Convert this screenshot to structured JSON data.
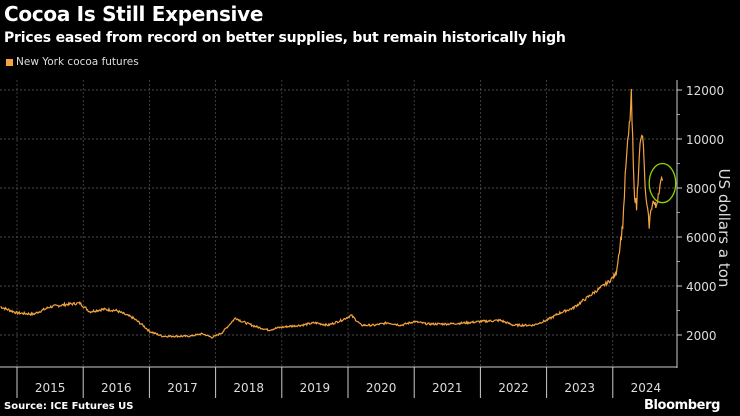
{
  "chart_data": {
    "type": "line",
    "title": "Cocoa Is Still Expensive",
    "subtitle": "Prices eased from record on better supplies, but remain historically high",
    "ylabel": "US dollars a ton",
    "source": "Source: ICE Futures US",
    "brand": "Bloomberg",
    "ylim": [
      1500,
      12500
    ],
    "yticks": [
      2000,
      4000,
      6000,
      8000,
      10000,
      12000
    ],
    "ytick_labels": [
      "2000",
      "4000",
      "6000",
      "8000",
      "10000",
      "12000"
    ],
    "xticks": [
      "2015",
      "2016",
      "2017",
      "2018",
      "2019",
      "2020",
      "2021",
      "2022",
      "2023",
      "2024"
    ],
    "grid": true,
    "legend_position": "top-left",
    "series": [
      {
        "name": "New York cocoa futures",
        "color": "#f4a340",
        "x": [
          2014.75,
          2015.0,
          2015.25,
          2015.5,
          2015.75,
          2015.95,
          2016.1,
          2016.3,
          2016.5,
          2016.75,
          2016.9,
          2017.0,
          2017.2,
          2017.4,
          2017.6,
          2017.8,
          2017.95,
          2018.1,
          2018.3,
          2018.4,
          2018.6,
          2018.8,
          2018.95,
          2019.1,
          2019.3,
          2019.5,
          2019.7,
          2019.9,
          2020.05,
          2020.2,
          2020.4,
          2020.6,
          2020.8,
          2021.0,
          2021.2,
          2021.5,
          2021.8,
          2022.0,
          2022.3,
          2022.5,
          2022.8,
          2023.0,
          2023.2,
          2023.4,
          2023.6,
          2023.8,
          2023.95,
          2024.05,
          2024.1,
          2024.15,
          2024.2,
          2024.25,
          2024.28,
          2024.32,
          2024.36,
          2024.4,
          2024.45,
          2024.5,
          2024.55,
          2024.6,
          2024.65,
          2024.7,
          2024.75
        ],
        "y": [
          3150,
          2900,
          2850,
          3150,
          3250,
          3300,
          2950,
          3050,
          3000,
          2700,
          2400,
          2150,
          1950,
          1950,
          1950,
          2050,
          1900,
          2100,
          2700,
          2550,
          2350,
          2200,
          2300,
          2350,
          2400,
          2500,
          2400,
          2600,
          2800,
          2400,
          2400,
          2500,
          2400,
          2550,
          2450,
          2450,
          2500,
          2550,
          2600,
          2400,
          2400,
          2600,
          2900,
          3100,
          3500,
          3900,
          4200,
          4500,
          5500,
          6500,
          9000,
          10500,
          11700,
          8000,
          7200,
          9500,
          10200,
          7500,
          6500,
          7500,
          7200,
          8000,
          8300
        ]
      }
    ],
    "annotations": [
      {
        "type": "ellipse",
        "color": "#8fd400",
        "x_range": [
          2024.55,
          2024.95
        ],
        "y_range": [
          7400,
          9000
        ]
      }
    ]
  }
}
